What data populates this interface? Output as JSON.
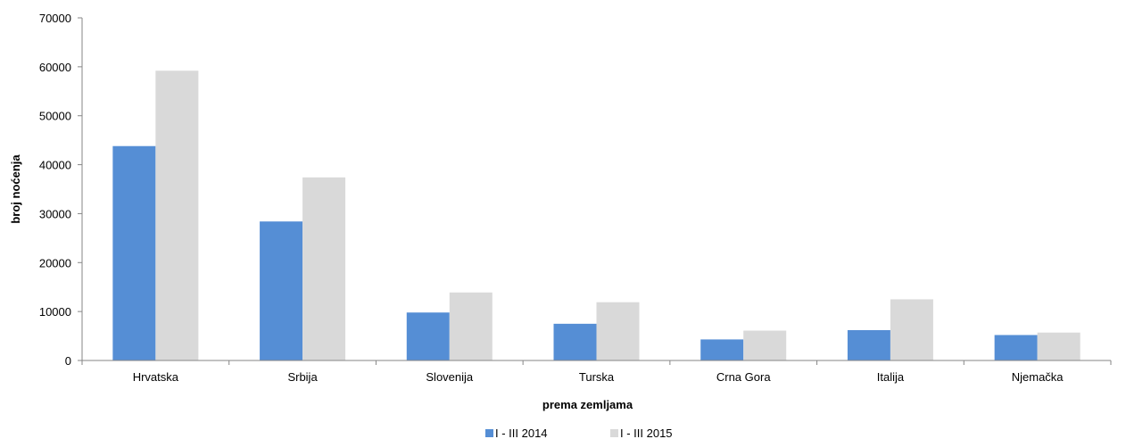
{
  "chart_data": {
    "type": "bar",
    "title": "",
    "xlabel": "prema zemljama",
    "ylabel": "broj noćenja",
    "categories": [
      "Hrvatska",
      "Srbija",
      "Slovenija",
      "Turska",
      "Crna Gora",
      "Italija",
      "Njemačka"
    ],
    "series": [
      {
        "name": "I - III 2014",
        "color": "#558ED5",
        "values": [
          43800,
          28400,
          9800,
          7500,
          4300,
          6200,
          5200
        ]
      },
      {
        "name": "I - III 2015",
        "color": "#D9D9D9",
        "values": [
          59200,
          37400,
          13900,
          11900,
          6100,
          12500,
          5700
        ]
      }
    ],
    "ylim": [
      0,
      70000
    ],
    "yticks": [
      0,
      10000,
      20000,
      30000,
      40000,
      50000,
      60000,
      70000
    ],
    "grid": false,
    "legend_position": "bottom"
  }
}
